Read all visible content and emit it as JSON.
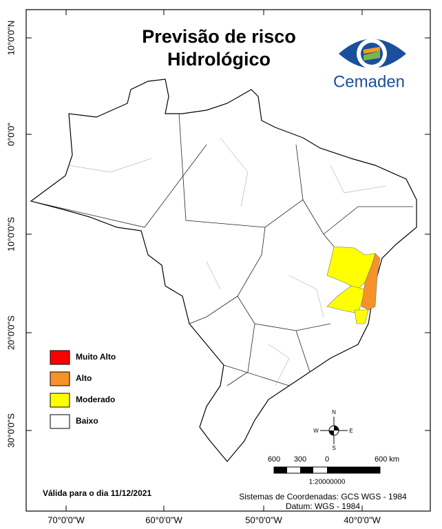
{
  "header": {
    "title_lines": [
      "Previsão de risco",
      "Hidrológico"
    ],
    "logo_text": "Cemaden"
  },
  "axes": {
    "latitude": [
      "10°0'0\"N",
      "0°0'0\"",
      "10°0'0\"S",
      "20°0'0\"S",
      "30°0'0\"S"
    ],
    "longitude": [
      "70°0'0\"W",
      "60°0'0\"W",
      "50°0'0\"W",
      "40°0'0\"W"
    ]
  },
  "legend": {
    "items": [
      {
        "label": "Muito Alto",
        "color": "#ff0000"
      },
      {
        "label": "Alto",
        "color": "#f7922a"
      },
      {
        "label": "Moderado",
        "color": "#ffff00"
      },
      {
        "label": "Baixo",
        "color": "#ffffff"
      }
    ]
  },
  "compass": {
    "n": "N",
    "s": "S",
    "e": "E",
    "w": "W"
  },
  "scale_bar": {
    "labels": [
      "600",
      "300",
      "0",
      "600 km"
    ],
    "ratio": "1:20000000"
  },
  "footer": {
    "valid_date": "Válida para o dia 11/12/2021",
    "coord_system": "Sistemas de Coordenadas: GCS WGS - 1984",
    "datum": "Datum: WGS - 1984"
  }
}
